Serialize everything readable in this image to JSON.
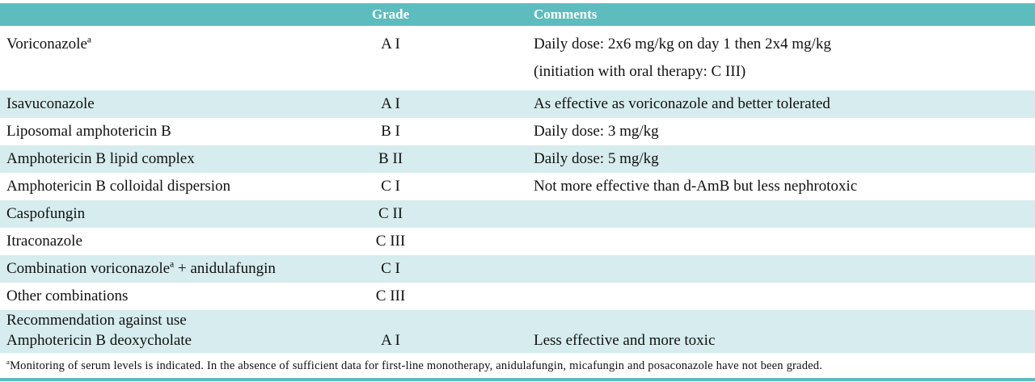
{
  "colors": {
    "header_bg": "#5cbcbe",
    "row_shade_bg": "#d6ecee",
    "text": "#111111"
  },
  "table": {
    "header": {
      "drug": "",
      "grade": "Grade",
      "comments": "Comments"
    },
    "rows": [
      {
        "shaded": false,
        "align": "top",
        "drug_lines": [
          [
            {
              "t": "Voriconazole"
            },
            {
              "t": "a",
              "sup": true
            }
          ]
        ],
        "grade": "A I",
        "comment_lines": [
          "Daily dose: 2x6 mg/kg on day 1 then 2x4 mg/kg",
          "(initiation with oral therapy: C III)"
        ]
      },
      {
        "shaded": true,
        "drug_lines": [
          [
            {
              "t": "Isavuconazole"
            }
          ]
        ],
        "grade": "A I",
        "comment_lines": [
          "As effective as voriconazole and better tolerated"
        ]
      },
      {
        "shaded": false,
        "drug_lines": [
          [
            {
              "t": "Liposomal amphotericin B"
            }
          ]
        ],
        "grade": "B I",
        "comment_lines": [
          "Daily dose: 3 mg/kg"
        ]
      },
      {
        "shaded": true,
        "drug_lines": [
          [
            {
              "t": "Amphotericin B lipid complex"
            }
          ]
        ],
        "grade": "B II",
        "comment_lines": [
          "Daily dose: 5 mg/kg"
        ]
      },
      {
        "shaded": false,
        "drug_lines": [
          [
            {
              "t": "Amphotericin B colloidal dispersion"
            }
          ]
        ],
        "grade": "C I",
        "comment_lines": [
          "Not more effective than d-AmB but less nephrotoxic"
        ]
      },
      {
        "shaded": true,
        "drug_lines": [
          [
            {
              "t": "Caspofungin"
            }
          ]
        ],
        "grade": "C II",
        "comment_lines": []
      },
      {
        "shaded": false,
        "drug_lines": [
          [
            {
              "t": "Itraconazole"
            }
          ]
        ],
        "grade": "C III",
        "comment_lines": []
      },
      {
        "shaded": true,
        "drug_lines": [
          [
            {
              "t": "Combination voriconazole"
            },
            {
              "t": "a",
              "sup": true
            },
            {
              "t": " + anidulafungin"
            }
          ]
        ],
        "grade": "C I",
        "comment_lines": []
      },
      {
        "shaded": false,
        "drug_lines": [
          [
            {
              "t": "Other combinations"
            }
          ]
        ],
        "grade": "C III",
        "comment_lines": []
      },
      {
        "shaded": true,
        "align": "bottom",
        "drug_lines": [
          [
            {
              "t": "Recommendation against use"
            }
          ],
          [
            {
              "t": " Amphotericin B deoxycholate"
            }
          ]
        ],
        "grade": "A I",
        "comment_lines": [
          "Less effective and more toxic"
        ]
      }
    ],
    "footnote_segments": [
      {
        "t": "a",
        "sup": true
      },
      {
        "t": "Monitoring of serum levels is indicated. In the absence of sufficient data for first-line monotherapy, anidulafungin, micafungin and posaconazole have not been graded."
      }
    ]
  }
}
